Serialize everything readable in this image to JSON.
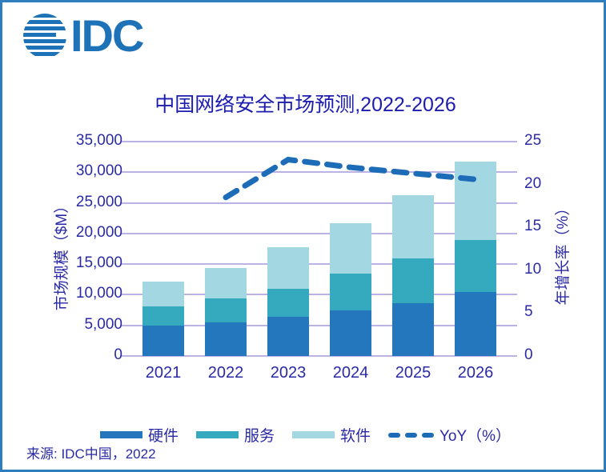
{
  "logo": {
    "text": "IDC"
  },
  "header": {
    "title": "中国网络安全市场预测,2022-2026"
  },
  "footer": {
    "source": "来源: IDC中国，2022"
  },
  "colors": {
    "background": "#FFFFFF",
    "frame_border": "#2E7DBD",
    "logo_blue": "#1E72B8",
    "title_text": "#1C1CAE",
    "axis_text": "#2A2AA6",
    "gridline": "#BBB3E4",
    "hardware": "#2577BD",
    "services": "#35AABF",
    "software": "#A3D8E2",
    "yoy_line": "#1C6CB8"
  },
  "chart_data": {
    "type": "bar",
    "subtype": "stacked-bars-with-line",
    "title": "中国网络安全市场预测,2022-2026",
    "categories": [
      "2021",
      "2022",
      "2023",
      "2024",
      "2025",
      "2026"
    ],
    "series": [
      {
        "name": "硬件",
        "type": "bar",
        "axis": "left",
        "color": "#2577BD",
        "values": [
          4900,
          5500,
          6400,
          7400,
          8600,
          10500
        ]
      },
      {
        "name": "服务",
        "type": "bar",
        "axis": "left",
        "color": "#35AABF",
        "values": [
          3200,
          3900,
          4600,
          6100,
          7400,
          8500
        ]
      },
      {
        "name": "软件",
        "type": "bar",
        "axis": "left",
        "color": "#A3D8E2",
        "values": [
          4100,
          5000,
          6800,
          8200,
          10300,
          12700
        ]
      },
      {
        "name": "YoY（%）",
        "type": "line",
        "style": "dashed",
        "axis": "right",
        "color": "#1C6CB8",
        "values": [
          null,
          18.5,
          22.9,
          22.0,
          21.3,
          20.6
        ]
      }
    ],
    "stacked_totals": [
      12200,
      14400,
      17800,
      21700,
      26300,
      31700
    ],
    "left_axis": {
      "label": "市场规模（$M）",
      "min": 0,
      "max": 35000,
      "step": 5000,
      "tick_labels": [
        "35,000",
        "30,000",
        "25,000",
        "20,000",
        "15,000",
        "10,000",
        "5,000",
        "0"
      ]
    },
    "right_axis": {
      "label": "年增长率（%）",
      "min": 0,
      "max": 25,
      "step": 5,
      "tick_labels": [
        "25",
        "20",
        "15",
        "10",
        "5",
        "0"
      ]
    },
    "grid": true,
    "legend_position": "bottom"
  }
}
